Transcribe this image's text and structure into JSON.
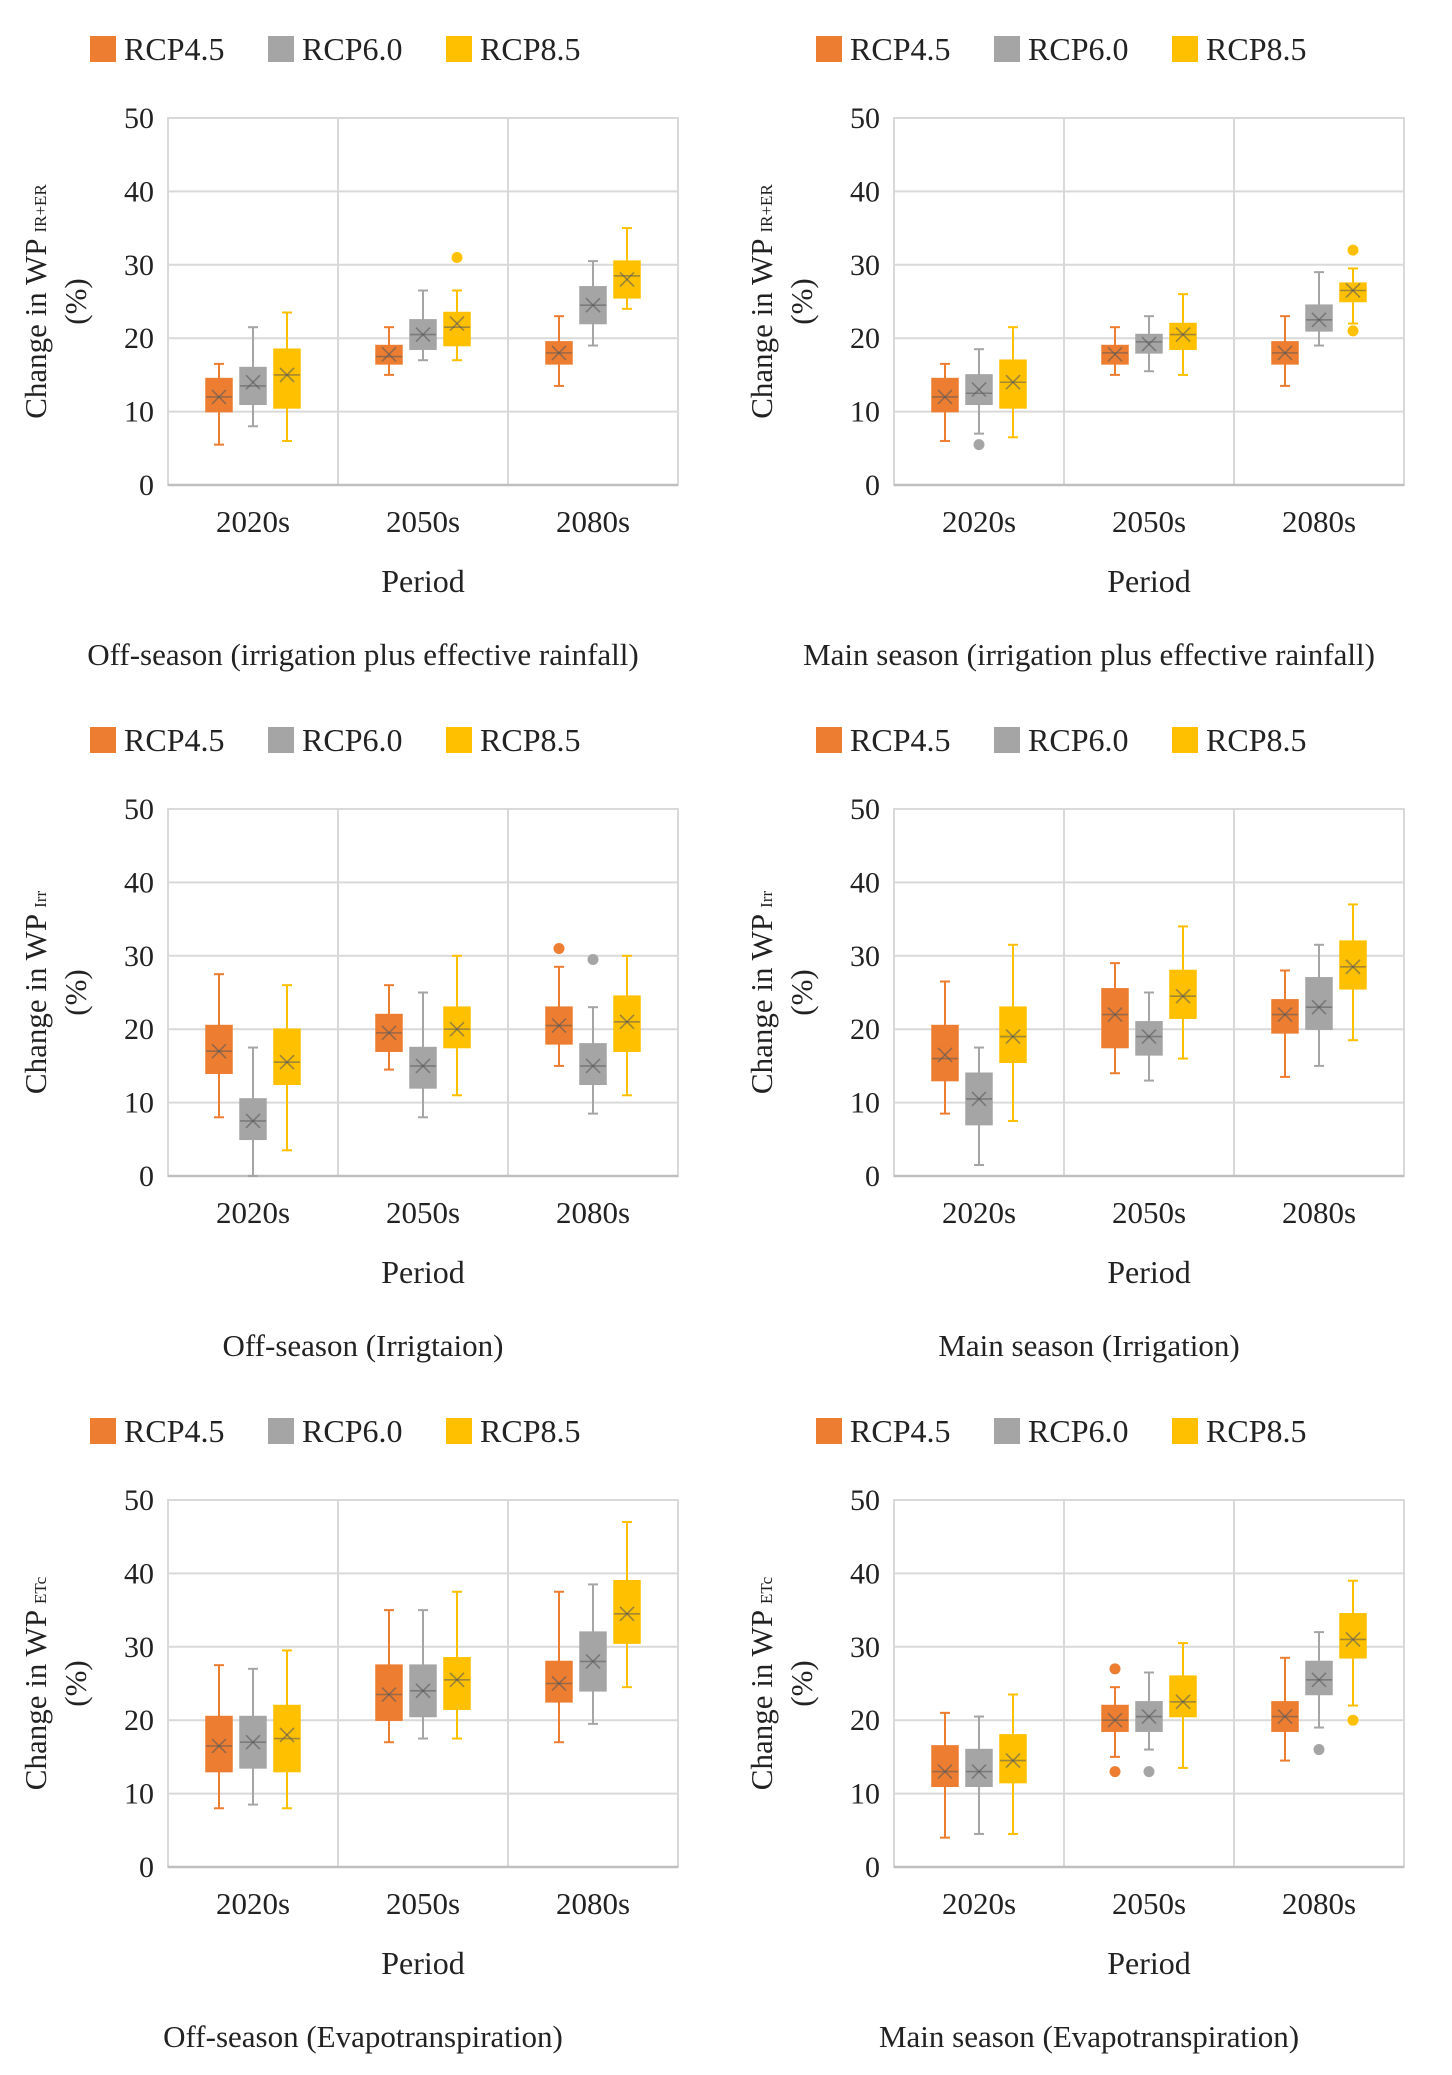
{
  "colors": {
    "rcp45": "#ED7D31",
    "rcp60": "#A5A5A5",
    "rcp85": "#FFC000",
    "grid": "#D9D9D9",
    "axis": "#BFBFBF"
  },
  "chart_data": [
    {
      "type": "box",
      "caption": "Off-season (irrigation plus effective rainfall)",
      "xlabel": "Period",
      "ylabel_main": "Change in WP",
      "ylabel_sub": "IR+ER",
      "ylabel_unit": "(%)",
      "ylim": [
        0,
        50
      ],
      "yticks": [
        "0",
        "10",
        "20",
        "30",
        "40",
        "50"
      ],
      "categories": [
        "2020s",
        "2050s",
        "2080s"
      ],
      "legend": [
        "RCP4.5",
        "RCP6.0",
        "RCP8.5"
      ],
      "series": [
        {
          "name": "RCP4.5",
          "boxes": [
            {
              "min": 5.5,
              "q1": 10,
              "median": 12,
              "q3": 14.5,
              "max": 16.5,
              "mean": 12,
              "outliers": []
            },
            {
              "min": 15,
              "q1": 16.5,
              "median": 17.5,
              "q3": 19,
              "max": 21.5,
              "mean": 17.8,
              "outliers": []
            },
            {
              "min": 13.5,
              "q1": 16.5,
              "median": 18,
              "q3": 19.5,
              "max": 23,
              "mean": 18,
              "outliers": []
            }
          ]
        },
        {
          "name": "RCP6.0",
          "boxes": [
            {
              "min": 8,
              "q1": 11,
              "median": 13.5,
              "q3": 16,
              "max": 21.5,
              "mean": 14,
              "outliers": []
            },
            {
              "min": 17,
              "q1": 18.5,
              "median": 20.5,
              "q3": 22.5,
              "max": 26.5,
              "mean": 20.5,
              "outliers": []
            },
            {
              "min": 19,
              "q1": 22,
              "median": 24.5,
              "q3": 27,
              "max": 30.5,
              "mean": 24.5,
              "outliers": []
            }
          ]
        },
        {
          "name": "RCP8.5",
          "boxes": [
            {
              "min": 6,
              "q1": 10.5,
              "median": 15,
              "q3": 18.5,
              "max": 23.5,
              "mean": 15,
              "outliers": []
            },
            {
              "min": 17,
              "q1": 19,
              "median": 21.5,
              "q3": 23.5,
              "max": 26.5,
              "mean": 22,
              "outliers": [
                31
              ]
            },
            {
              "min": 24,
              "q1": 25.5,
              "median": 28.5,
              "q3": 30.5,
              "max": 35,
              "mean": 28,
              "outliers": []
            }
          ]
        }
      ]
    },
    {
      "type": "box",
      "caption": "Main season (irrigation plus effective rainfall)",
      "xlabel": "Period",
      "ylabel_main": "Change in WP",
      "ylabel_sub": "IR+ER",
      "ylabel_unit": "(%)",
      "ylim": [
        0,
        50
      ],
      "yticks": [
        "0",
        "10",
        "20",
        "30",
        "40",
        "50"
      ],
      "categories": [
        "2020s",
        "2050s",
        "2080s"
      ],
      "legend": [
        "RCP4.5",
        "RCP6.0",
        "RCP8.5"
      ],
      "series": [
        {
          "name": "RCP4.5",
          "boxes": [
            {
              "min": 6,
              "q1": 10,
              "median": 12,
              "q3": 14.5,
              "max": 16.5,
              "mean": 12,
              "outliers": []
            },
            {
              "min": 15,
              "q1": 16.5,
              "median": 18,
              "q3": 19,
              "max": 21.5,
              "mean": 17.8,
              "outliers": []
            },
            {
              "min": 13.5,
              "q1": 16.5,
              "median": 18,
              "q3": 19.5,
              "max": 23,
              "mean": 18,
              "outliers": []
            }
          ]
        },
        {
          "name": "RCP6.0",
          "boxes": [
            {
              "min": 7,
              "q1": 11,
              "median": 12.5,
              "q3": 15,
              "max": 18.5,
              "mean": 13,
              "outliers": [
                5.5
              ]
            },
            {
              "min": 15.5,
              "q1": 18,
              "median": 19.5,
              "q3": 20.5,
              "max": 23,
              "mean": 19.2,
              "outliers": []
            },
            {
              "min": 19,
              "q1": 21,
              "median": 22.5,
              "q3": 24.5,
              "max": 29,
              "mean": 22.5,
              "outliers": []
            }
          ]
        },
        {
          "name": "RCP8.5",
          "boxes": [
            {
              "min": 6.5,
              "q1": 10.5,
              "median": 14,
              "q3": 17,
              "max": 21.5,
              "mean": 14,
              "outliers": []
            },
            {
              "min": 15,
              "q1": 18.5,
              "median": 20.5,
              "q3": 22,
              "max": 26,
              "mean": 20.5,
              "outliers": []
            },
            {
              "min": 22,
              "q1": 25,
              "median": 26.5,
              "q3": 27.5,
              "max": 29.5,
              "mean": 26.5,
              "outliers": [
                21,
                32
              ]
            }
          ]
        }
      ]
    },
    {
      "type": "box",
      "caption": "Off-season (Irrigtaion)",
      "xlabel": "Period",
      "ylabel_main": "Change in  WP",
      "ylabel_sub": "Irr",
      "ylabel_unit": "(%)",
      "ylim": [
        0,
        50
      ],
      "yticks": [
        "0",
        "10",
        "20",
        "30",
        "40",
        "50"
      ],
      "categories": [
        "2020s",
        "2050s",
        "2080s"
      ],
      "legend": [
        "RCP4.5",
        "RCP6.0",
        "RCP8.5"
      ],
      "series": [
        {
          "name": "RCP4.5",
          "boxes": [
            {
              "min": 8,
              "q1": 14,
              "median": 17,
              "q3": 20.5,
              "max": 27.5,
              "mean": 17,
              "outliers": []
            },
            {
              "min": 14.5,
              "q1": 17,
              "median": 19.5,
              "q3": 22,
              "max": 26,
              "mean": 19.5,
              "outliers": []
            },
            {
              "min": 15,
              "q1": 18,
              "median": 20.5,
              "q3": 23,
              "max": 28.5,
              "mean": 20.5,
              "outliers": [
                31
              ]
            }
          ]
        },
        {
          "name": "RCP6.0",
          "boxes": [
            {
              "min": 0,
              "q1": 5,
              "median": 7.5,
              "q3": 10.5,
              "max": 17.5,
              "mean": 7.5,
              "outliers": []
            },
            {
              "min": 8,
              "q1": 12,
              "median": 15,
              "q3": 17.5,
              "max": 25,
              "mean": 15,
              "outliers": []
            },
            {
              "min": 8.5,
              "q1": 12.5,
              "median": 15,
              "q3": 18,
              "max": 23,
              "mean": 15,
              "outliers": [
                29.5
              ]
            }
          ]
        },
        {
          "name": "RCP8.5",
          "boxes": [
            {
              "min": 3.5,
              "q1": 12.5,
              "median": 15.5,
              "q3": 20,
              "max": 26,
              "mean": 15.5,
              "outliers": []
            },
            {
              "min": 11,
              "q1": 17.5,
              "median": 20,
              "q3": 23,
              "max": 30,
              "mean": 20,
              "outliers": []
            },
            {
              "min": 11,
              "q1": 17,
              "median": 21,
              "q3": 24.5,
              "max": 30,
              "mean": 21,
              "outliers": []
            }
          ]
        }
      ]
    },
    {
      "type": "box",
      "caption": "Main season (Irrigation)",
      "xlabel": "Period",
      "ylabel_main": "Change in WP",
      "ylabel_sub": "Irr",
      "ylabel_unit": "(%)",
      "ylim": [
        0,
        50
      ],
      "yticks": [
        "0",
        "10",
        "20",
        "30",
        "40",
        "50"
      ],
      "categories": [
        "2020s",
        "2050s",
        "2080s"
      ],
      "legend": [
        "RCP4.5",
        "RCP6.0",
        "RCP8.5"
      ],
      "series": [
        {
          "name": "RCP4.5",
          "boxes": [
            {
              "min": 8.5,
              "q1": 13,
              "median": 16,
              "q3": 20.5,
              "max": 26.5,
              "mean": 16.5,
              "outliers": []
            },
            {
              "min": 14,
              "q1": 17.5,
              "median": 22,
              "q3": 25.5,
              "max": 29,
              "mean": 22,
              "outliers": []
            },
            {
              "min": 13.5,
              "q1": 19.5,
              "median": 22,
              "q3": 24,
              "max": 28,
              "mean": 22,
              "outliers": []
            }
          ]
        },
        {
          "name": "RCP6.0",
          "boxes": [
            {
              "min": 1.5,
              "q1": 7,
              "median": 10.5,
              "q3": 14,
              "max": 17.5,
              "mean": 10.5,
              "outliers": []
            },
            {
              "min": 13,
              "q1": 16.5,
              "median": 19,
              "q3": 21,
              "max": 25,
              "mean": 19,
              "outliers": []
            },
            {
              "min": 15,
              "q1": 20,
              "median": 23,
              "q3": 27,
              "max": 31.5,
              "mean": 23,
              "outliers": []
            }
          ]
        },
        {
          "name": "RCP8.5",
          "boxes": [
            {
              "min": 7.5,
              "q1": 15.5,
              "median": 19,
              "q3": 23,
              "max": 31.5,
              "mean": 19,
              "outliers": []
            },
            {
              "min": 16,
              "q1": 21.5,
              "median": 24.5,
              "q3": 28,
              "max": 34,
              "mean": 24.5,
              "outliers": []
            },
            {
              "min": 18.5,
              "q1": 25.5,
              "median": 28.5,
              "q3": 32,
              "max": 37,
              "mean": 28.5,
              "outliers": []
            }
          ]
        }
      ]
    },
    {
      "type": "box",
      "caption": "Off-season (Evapotranspiration)",
      "xlabel": "Period",
      "ylabel_main": "Change in WP",
      "ylabel_sub": "ETc",
      "ylabel_unit": "(%)",
      "ylim": [
        0,
        50
      ],
      "yticks": [
        "0",
        "10",
        "20",
        "30",
        "40",
        "50"
      ],
      "categories": [
        "2020s",
        "2050s",
        "2080s"
      ],
      "legend": [
        "RCP4.5",
        "RCP6.0",
        "RCP8.5"
      ],
      "series": [
        {
          "name": "RCP4.5",
          "boxes": [
            {
              "min": 8,
              "q1": 13,
              "median": 16.5,
              "q3": 20.5,
              "max": 27.5,
              "mean": 16.5,
              "outliers": []
            },
            {
              "min": 17,
              "q1": 20,
              "median": 23.5,
              "q3": 27.5,
              "max": 35,
              "mean": 23.5,
              "outliers": []
            },
            {
              "min": 17,
              "q1": 22.5,
              "median": 25,
              "q3": 28,
              "max": 37.5,
              "mean": 25,
              "outliers": []
            }
          ]
        },
        {
          "name": "RCP6.0",
          "boxes": [
            {
              "min": 8.5,
              "q1": 13.5,
              "median": 17,
              "q3": 20.5,
              "max": 27,
              "mean": 17,
              "outliers": []
            },
            {
              "min": 17.5,
              "q1": 20.5,
              "median": 24,
              "q3": 27.5,
              "max": 35,
              "mean": 24,
              "outliers": []
            },
            {
              "min": 19.5,
              "q1": 24,
              "median": 28,
              "q3": 32,
              "max": 38.5,
              "mean": 28,
              "outliers": []
            }
          ]
        },
        {
          "name": "RCP8.5",
          "boxes": [
            {
              "min": 8,
              "q1": 13,
              "median": 17.5,
              "q3": 22,
              "max": 29.5,
              "mean": 18,
              "outliers": []
            },
            {
              "min": 17.5,
              "q1": 21.5,
              "median": 25.5,
              "q3": 28.5,
              "max": 37.5,
              "mean": 25.5,
              "outliers": []
            },
            {
              "min": 24.5,
              "q1": 30.5,
              "median": 34.5,
              "q3": 39,
              "max": 47,
              "mean": 34.5,
              "outliers": []
            }
          ]
        }
      ]
    },
    {
      "type": "box",
      "caption": "Main season (Evapotranspiration)",
      "xlabel": "Period",
      "ylabel_main": "Change in WP",
      "ylabel_sub": "ETc",
      "ylabel_unit": "(%)",
      "ylim": [
        0,
        50
      ],
      "yticks": [
        "0",
        "10",
        "20",
        "30",
        "40",
        "50"
      ],
      "categories": [
        "2020s",
        "2050s",
        "2080s"
      ],
      "legend": [
        "RCP4.5",
        "RCP6.0",
        "RCP8.5"
      ],
      "series": [
        {
          "name": "RCP4.5",
          "boxes": [
            {
              "min": 4,
              "q1": 11,
              "median": 13,
              "q3": 16.5,
              "max": 21,
              "mean": 13,
              "outliers": []
            },
            {
              "min": 15,
              "q1": 18.5,
              "median": 20,
              "q3": 22,
              "max": 24.5,
              "mean": 20,
              "outliers": [
                13,
                27
              ]
            },
            {
              "min": 14.5,
              "q1": 18.5,
              "median": 20.5,
              "q3": 22.5,
              "max": 28.5,
              "mean": 20.5,
              "outliers": []
            }
          ]
        },
        {
          "name": "RCP6.0",
          "boxes": [
            {
              "min": 4.5,
              "q1": 11,
              "median": 13,
              "q3": 16,
              "max": 20.5,
              "mean": 13,
              "outliers": []
            },
            {
              "min": 16,
              "q1": 18.5,
              "median": 20.5,
              "q3": 22.5,
              "max": 26.5,
              "mean": 20.5,
              "outliers": [
                13
              ]
            },
            {
              "min": 19,
              "q1": 23.5,
              "median": 25.5,
              "q3": 28,
              "max": 32,
              "mean": 25.5,
              "outliers": [
                16
              ]
            }
          ]
        },
        {
          "name": "RCP8.5",
          "boxes": [
            {
              "min": 4.5,
              "q1": 11.5,
              "median": 14.5,
              "q3": 18,
              "max": 23.5,
              "mean": 14.5,
              "outliers": []
            },
            {
              "min": 13.5,
              "q1": 20.5,
              "median": 22.5,
              "q3": 26,
              "max": 30.5,
              "mean": 22.5,
              "outliers": []
            },
            {
              "min": 22,
              "q1": 28.5,
              "median": 31,
              "q3": 34.5,
              "max": 39,
              "mean": 31,
              "outliers": [
                20
              ]
            }
          ]
        }
      ]
    }
  ]
}
